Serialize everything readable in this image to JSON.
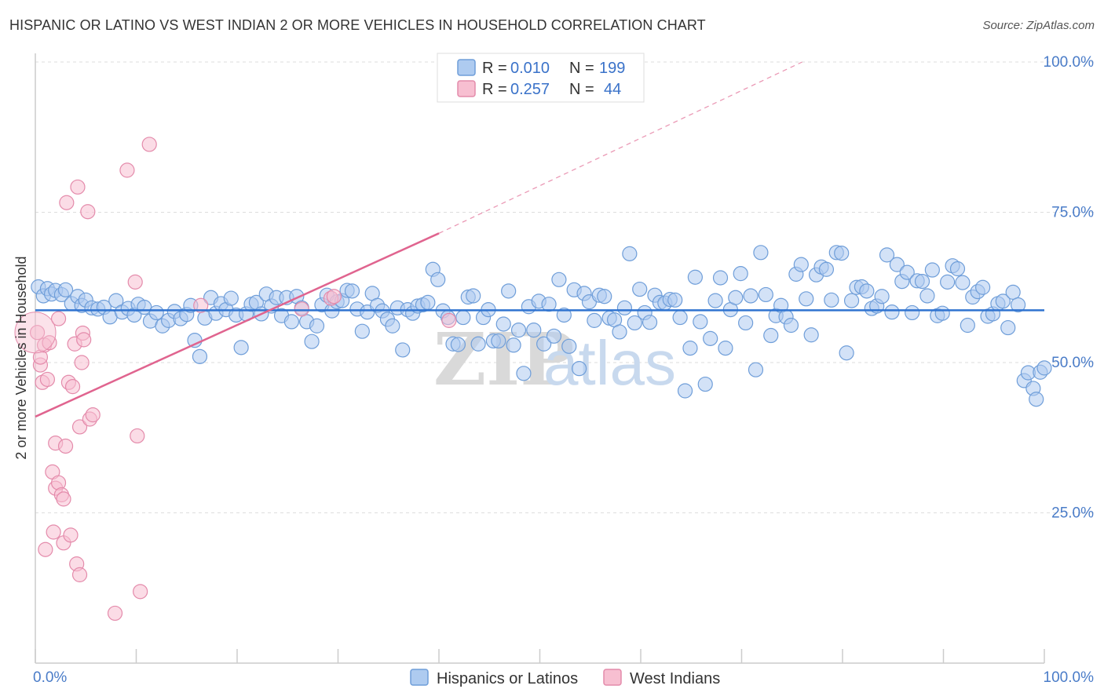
{
  "title": "HISPANIC OR LATINO VS WEST INDIAN 2 OR MORE VEHICLES IN HOUSEHOLD CORRELATION CHART",
  "source": "Source: ZipAtlas.com",
  "colors": {
    "blue_fill": "#aecbf0",
    "blue_stroke": "#6f9ed9",
    "blue_line": "#2f73d0",
    "pink_fill": "#f7bfd1",
    "pink_stroke": "#e48bab",
    "pink_line": "#e0648f",
    "grid": "#dddddd",
    "tick_text": "#4a7cc8"
  },
  "watermark": {
    "part1": "ZIP",
    "part2": "atlas"
  },
  "chart_data": {
    "type": "scatter",
    "title": "HISPANIC OR LATINO VS WEST INDIAN 2 OR MORE VEHICLES IN HOUSEHOLD CORRELATION CHART",
    "xlabel": "",
    "ylabel": "2 or more Vehicles in Household",
    "xlim": [
      0,
      100
    ],
    "ylim": [
      0,
      100
    ],
    "x_tick_labels": [
      "0.0%",
      "100.0%"
    ],
    "y_ticks": [
      25,
      50,
      75,
      100
    ],
    "y_tick_labels": [
      "25.0%",
      "50.0%",
      "75.0%",
      "100.0%"
    ],
    "grid": true,
    "legend_position": "top-center",
    "legend": [
      {
        "name": "Hispanics or Latinos",
        "r_label": "R =",
        "r_value": "0.010",
        "n_label": "N =",
        "n_value": "199"
      },
      {
        "name": "West Indians",
        "r_label": "R =",
        "r_value": "0.257",
        "n_label": "N =",
        "n_value": "44"
      }
    ],
    "series": [
      {
        "name": "Hispanics or Latinos",
        "color": "#6f9ed9",
        "trend": {
          "x": [
            0,
            100
          ],
          "y": [
            58.7,
            58.7
          ]
        },
        "points": [
          [
            0.3,
            62.6
          ],
          [
            0.8,
            61.1
          ],
          [
            1.2,
            62.3
          ],
          [
            1.6,
            61.4
          ],
          [
            2.0,
            62.0
          ],
          [
            2.6,
            61.3
          ],
          [
            3.0,
            62.1
          ],
          [
            3.6,
            59.8
          ],
          [
            4.2,
            61.0
          ],
          [
            4.6,
            59.5
          ],
          [
            5.0,
            60.4
          ],
          [
            5.6,
            59.1
          ],
          [
            6.2,
            58.9
          ],
          [
            6.8,
            59.2
          ],
          [
            7.4,
            57.6
          ],
          [
            8.0,
            60.3
          ],
          [
            8.6,
            58.4
          ],
          [
            9.2,
            59.0
          ],
          [
            9.8,
            57.9
          ],
          [
            10.2,
            59.7
          ],
          [
            10.8,
            59.2
          ],
          [
            11.4,
            56.9
          ],
          [
            12.0,
            58.3
          ],
          [
            12.6,
            56.1
          ],
          [
            13.2,
            57.0
          ],
          [
            13.8,
            58.5
          ],
          [
            14.4,
            57.3
          ],
          [
            15.0,
            58.0
          ],
          [
            15.4,
            59.5
          ],
          [
            15.8,
            53.7
          ],
          [
            16.3,
            51.0
          ],
          [
            16.8,
            57.4
          ],
          [
            17.4,
            60.8
          ],
          [
            17.9,
            58.2
          ],
          [
            18.4,
            59.8
          ],
          [
            18.9,
            58.8
          ],
          [
            19.4,
            60.7
          ],
          [
            19.9,
            57.9
          ],
          [
            20.4,
            52.5
          ],
          [
            20.9,
            58.1
          ],
          [
            21.4,
            59.7
          ],
          [
            21.9,
            60.0
          ],
          [
            22.4,
            58.1
          ],
          [
            22.9,
            61.4
          ],
          [
            23.4,
            59.4
          ],
          [
            23.9,
            60.8
          ],
          [
            24.4,
            57.8
          ],
          [
            24.9,
            60.8
          ],
          [
            25.4,
            56.8
          ],
          [
            25.9,
            61.0
          ],
          [
            26.4,
            59.1
          ],
          [
            26.9,
            56.8
          ],
          [
            27.4,
            53.5
          ],
          [
            27.9,
            56.1
          ],
          [
            28.4,
            59.6
          ],
          [
            28.9,
            61.2
          ],
          [
            29.4,
            58.6
          ],
          [
            29.9,
            60.1
          ],
          [
            30.4,
            60.3
          ],
          [
            30.9,
            62.0
          ],
          [
            31.4,
            61.9
          ],
          [
            31.9,
            58.9
          ],
          [
            32.4,
            55.2
          ],
          [
            32.9,
            58.4
          ],
          [
            33.4,
            61.5
          ],
          [
            33.9,
            59.5
          ],
          [
            34.4,
            58.6
          ],
          [
            34.9,
            57.2
          ],
          [
            35.4,
            56.1
          ],
          [
            35.9,
            59.1
          ],
          [
            36.4,
            52.1
          ],
          [
            36.9,
            58.8
          ],
          [
            37.4,
            58.2
          ],
          [
            37.9,
            59.4
          ],
          [
            38.4,
            59.6
          ],
          [
            38.9,
            60.0
          ],
          [
            39.4,
            65.5
          ],
          [
            39.9,
            63.8
          ],
          [
            40.4,
            58.6
          ],
          [
            40.9,
            57.5
          ],
          [
            41.4,
            53.1
          ],
          [
            41.9,
            53.0
          ],
          [
            42.4,
            57.5
          ],
          [
            42.9,
            60.9
          ],
          [
            43.4,
            61.1
          ],
          [
            43.9,
            53.1
          ],
          [
            44.4,
            57.5
          ],
          [
            44.9,
            58.8
          ],
          [
            45.4,
            53.6
          ],
          [
            45.9,
            53.6
          ],
          [
            46.4,
            56.4
          ],
          [
            46.9,
            61.9
          ],
          [
            47.4,
            52.9
          ],
          [
            47.9,
            55.4
          ],
          [
            48.4,
            48.2
          ],
          [
            48.9,
            59.3
          ],
          [
            49.4,
            55.4
          ],
          [
            49.9,
            60.2
          ],
          [
            50.4,
            53.1
          ],
          [
            50.9,
            59.7
          ],
          [
            51.4,
            54.4
          ],
          [
            51.9,
            63.8
          ],
          [
            52.4,
            57.9
          ],
          [
            52.9,
            52.7
          ],
          [
            53.4,
            62.1
          ],
          [
            53.9,
            49.0
          ],
          [
            54.4,
            61.5
          ],
          [
            54.9,
            60.1
          ],
          [
            55.4,
            57.0
          ],
          [
            55.9,
            61.2
          ],
          [
            56.4,
            61.0
          ],
          [
            56.9,
            57.4
          ],
          [
            57.4,
            57.1
          ],
          [
            57.9,
            55.1
          ],
          [
            58.4,
            59.1
          ],
          [
            58.9,
            68.1
          ],
          [
            59.4,
            56.6
          ],
          [
            59.9,
            62.2
          ],
          [
            60.4,
            58.3
          ],
          [
            60.9,
            56.7
          ],
          [
            61.4,
            61.2
          ],
          [
            61.9,
            60.0
          ],
          [
            62.4,
            59.9
          ],
          [
            62.9,
            60.5
          ],
          [
            63.4,
            60.4
          ],
          [
            63.9,
            57.5
          ],
          [
            64.4,
            45.3
          ],
          [
            64.9,
            52.4
          ],
          [
            65.4,
            64.2
          ],
          [
            65.9,
            56.8
          ],
          [
            66.4,
            46.4
          ],
          [
            66.9,
            54.0
          ],
          [
            67.4,
            60.3
          ],
          [
            67.9,
            64.1
          ],
          [
            68.4,
            52.4
          ],
          [
            68.9,
            58.8
          ],
          [
            69.4,
            60.8
          ],
          [
            69.9,
            64.8
          ],
          [
            70.4,
            56.6
          ],
          [
            70.9,
            61.1
          ],
          [
            71.4,
            48.8
          ],
          [
            71.9,
            68.3
          ],
          [
            72.4,
            61.3
          ],
          [
            72.9,
            54.5
          ],
          [
            73.4,
            57.8
          ],
          [
            73.9,
            59.5
          ],
          [
            74.4,
            57.6
          ],
          [
            74.9,
            56.2
          ],
          [
            75.4,
            64.7
          ],
          [
            75.9,
            66.3
          ],
          [
            76.4,
            60.6
          ],
          [
            76.9,
            54.6
          ],
          [
            77.4,
            64.6
          ],
          [
            77.9,
            65.9
          ],
          [
            78.4,
            65.5
          ],
          [
            78.9,
            60.4
          ],
          [
            79.4,
            68.3
          ],
          [
            79.9,
            68.2
          ],
          [
            80.4,
            51.6
          ],
          [
            80.9,
            60.3
          ],
          [
            81.4,
            62.5
          ],
          [
            81.9,
            62.6
          ],
          [
            82.4,
            61.9
          ],
          [
            82.9,
            59.0
          ],
          [
            83.4,
            59.4
          ],
          [
            83.9,
            61.0
          ],
          [
            84.4,
            67.9
          ],
          [
            84.9,
            58.4
          ],
          [
            85.4,
            66.3
          ],
          [
            85.9,
            63.5
          ],
          [
            86.4,
            65.0
          ],
          [
            86.9,
            58.3
          ],
          [
            87.4,
            63.6
          ],
          [
            87.9,
            63.5
          ],
          [
            88.4,
            61.1
          ],
          [
            88.9,
            65.4
          ],
          [
            89.4,
            57.8
          ],
          [
            89.9,
            58.2
          ],
          [
            90.4,
            63.4
          ],
          [
            90.9,
            66.1
          ],
          [
            91.4,
            65.6
          ],
          [
            91.9,
            63.3
          ],
          [
            92.4,
            56.2
          ],
          [
            92.9,
            60.9
          ],
          [
            93.4,
            61.8
          ],
          [
            93.9,
            62.5
          ],
          [
            94.4,
            57.7
          ],
          [
            94.9,
            58.1
          ],
          [
            95.4,
            59.8
          ],
          [
            95.9,
            60.2
          ],
          [
            96.4,
            55.8
          ],
          [
            96.9,
            61.7
          ],
          [
            97.4,
            59.6
          ],
          [
            98.0,
            47.0
          ],
          [
            98.4,
            48.3
          ],
          [
            98.9,
            45.7
          ],
          [
            99.2,
            43.9
          ],
          [
            99.6,
            48.4
          ],
          [
            100.0,
            49.1
          ]
        ]
      },
      {
        "name": "West Indians",
        "color": "#e48bab",
        "trend": {
          "x": [
            0,
            40
          ],
          "y": [
            41.0,
            71.5
          ]
        },
        "trend_dashed": {
          "x": [
            40,
            76
          ],
          "y": [
            71.5,
            100
          ]
        },
        "points": [
          [
            0.2,
            55.0
          ],
          [
            0.5,
            49.6
          ],
          [
            0.5,
            50.9
          ],
          [
            0.7,
            46.7
          ],
          [
            0.9,
            52.9
          ],
          [
            1.0,
            18.9
          ],
          [
            1.2,
            47.2
          ],
          [
            1.4,
            53.3
          ],
          [
            1.7,
            31.8
          ],
          [
            1.8,
            21.8
          ],
          [
            2.0,
            36.6
          ],
          [
            2.0,
            29.1
          ],
          [
            2.3,
            30.0
          ],
          [
            2.3,
            57.3
          ],
          [
            2.6,
            28.0
          ],
          [
            2.8,
            27.3
          ],
          [
            2.8,
            20.0
          ],
          [
            3.0,
            36.1
          ],
          [
            3.1,
            76.6
          ],
          [
            3.3,
            46.7
          ],
          [
            3.5,
            21.3
          ],
          [
            3.7,
            46.0
          ],
          [
            3.9,
            53.1
          ],
          [
            4.1,
            16.5
          ],
          [
            4.2,
            79.2
          ],
          [
            4.4,
            14.7
          ],
          [
            4.4,
            39.3
          ],
          [
            4.6,
            50.0
          ],
          [
            4.7,
            54.9
          ],
          [
            4.8,
            53.8
          ],
          [
            5.2,
            75.1
          ],
          [
            5.4,
            40.6
          ],
          [
            5.7,
            41.3
          ],
          [
            7.9,
            8.3
          ],
          [
            9.1,
            82.0
          ],
          [
            9.9,
            63.4
          ],
          [
            10.1,
            37.8
          ],
          [
            10.4,
            11.9
          ],
          [
            11.3,
            86.3
          ],
          [
            16.4,
            59.5
          ],
          [
            26.4,
            58.9
          ],
          [
            29.3,
            60.7
          ],
          [
            29.6,
            61.0
          ],
          [
            41.0,
            57.0
          ]
        ]
      }
    ]
  }
}
